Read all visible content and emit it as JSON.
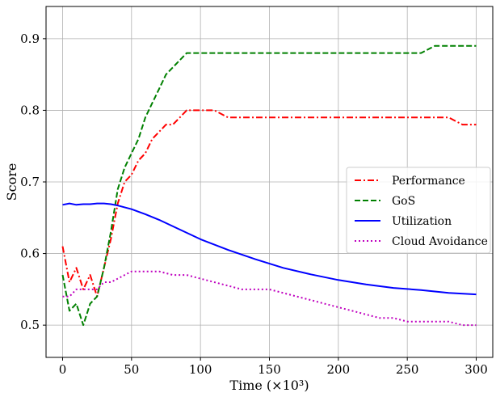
{
  "chart_data": {
    "type": "line",
    "title": "",
    "xlabel": "Time (×10³)",
    "ylabel": "Score",
    "xlim": [
      -12,
      312
    ],
    "ylim": [
      0.455,
      0.945
    ],
    "xticks": [
      0,
      50,
      100,
      150,
      200,
      250,
      300
    ],
    "yticks": [
      0.5,
      0.6,
      0.7,
      0.8,
      0.9
    ],
    "grid": true,
    "legend_position": "center-right",
    "series": [
      {
        "name": "Performance",
        "color": "#ff0000",
        "dash": "dashdot",
        "x": [
          0,
          5,
          10,
          15,
          20,
          25,
          30,
          35,
          40,
          45,
          50,
          55,
          60,
          65,
          70,
          75,
          80,
          85,
          90,
          95,
          100,
          110,
          120,
          130,
          140,
          150,
          160,
          170,
          180,
          190,
          200,
          210,
          220,
          230,
          240,
          250,
          260,
          270,
          280,
          290,
          300
        ],
        "y": [
          0.61,
          0.56,
          0.58,
          0.55,
          0.57,
          0.54,
          0.58,
          0.62,
          0.67,
          0.7,
          0.71,
          0.73,
          0.74,
          0.76,
          0.77,
          0.78,
          0.78,
          0.79,
          0.8,
          0.8,
          0.8,
          0.8,
          0.79,
          0.79,
          0.79,
          0.79,
          0.79,
          0.79,
          0.79,
          0.79,
          0.79,
          0.79,
          0.79,
          0.79,
          0.79,
          0.79,
          0.79,
          0.79,
          0.79,
          0.78,
          0.78
        ]
      },
      {
        "name": "GoS",
        "color": "#008000",
        "dash": "dashed",
        "x": [
          0,
          5,
          10,
          15,
          20,
          25,
          30,
          35,
          40,
          45,
          50,
          55,
          60,
          65,
          70,
          75,
          80,
          85,
          90,
          95,
          100,
          110,
          120,
          130,
          140,
          150,
          160,
          170,
          180,
          190,
          200,
          210,
          220,
          230,
          240,
          250,
          260,
          270,
          280,
          290,
          300
        ],
        "y": [
          0.57,
          0.52,
          0.53,
          0.5,
          0.53,
          0.54,
          0.58,
          0.63,
          0.69,
          0.72,
          0.74,
          0.76,
          0.79,
          0.81,
          0.83,
          0.85,
          0.86,
          0.87,
          0.88,
          0.88,
          0.88,
          0.88,
          0.88,
          0.88,
          0.88,
          0.88,
          0.88,
          0.88,
          0.88,
          0.88,
          0.88,
          0.88,
          0.88,
          0.88,
          0.88,
          0.88,
          0.88,
          0.89,
          0.89,
          0.89,
          0.89
        ]
      },
      {
        "name": "Utilization",
        "color": "#0000ff",
        "dash": "solid",
        "x": [
          0,
          5,
          10,
          15,
          20,
          25,
          30,
          35,
          40,
          50,
          60,
          70,
          80,
          90,
          100,
          120,
          140,
          160,
          180,
          200,
          220,
          240,
          260,
          280,
          300
        ],
        "y": [
          0.668,
          0.67,
          0.668,
          0.669,
          0.669,
          0.67,
          0.67,
          0.669,
          0.667,
          0.662,
          0.655,
          0.647,
          0.638,
          0.629,
          0.62,
          0.605,
          0.592,
          0.58,
          0.571,
          0.563,
          0.557,
          0.552,
          0.549,
          0.545,
          0.543
        ]
      },
      {
        "name": "Cloud Avoidance",
        "color": "#bf00bf",
        "dash": "dotted",
        "x": [
          0,
          5,
          10,
          15,
          20,
          25,
          30,
          35,
          40,
          50,
          60,
          70,
          80,
          90,
          100,
          110,
          120,
          130,
          140,
          150,
          160,
          170,
          180,
          190,
          200,
          210,
          220,
          230,
          240,
          250,
          260,
          270,
          280,
          290,
          300
        ],
        "y": [
          0.54,
          0.54,
          0.55,
          0.55,
          0.55,
          0.55,
          0.56,
          0.56,
          0.565,
          0.575,
          0.575,
          0.575,
          0.57,
          0.57,
          0.565,
          0.56,
          0.555,
          0.55,
          0.55,
          0.55,
          0.545,
          0.54,
          0.535,
          0.53,
          0.525,
          0.52,
          0.515,
          0.51,
          0.51,
          0.505,
          0.505,
          0.505,
          0.505,
          0.5,
          0.5
        ]
      }
    ]
  }
}
